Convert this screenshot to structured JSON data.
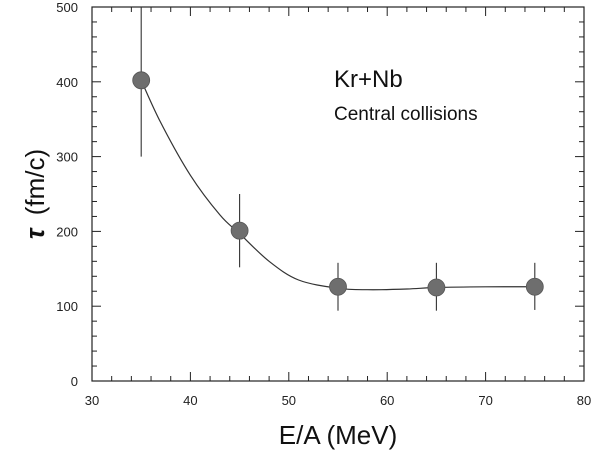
{
  "chart_data": {
    "type": "scatter",
    "title": "",
    "xlabel": "E/A (MeV)",
    "ylabel_symbol": "τ",
    "ylabel_unit": "(fm/c)",
    "xlim": [
      30,
      80
    ],
    "ylim": [
      0,
      500
    ],
    "xticks": [
      30,
      40,
      50,
      60,
      70,
      80
    ],
    "yticks": [
      0,
      100,
      200,
      300,
      400,
      500
    ],
    "grid": false,
    "annotation_title": "Kr+Nb",
    "annotation_subtitle": "Central collisions",
    "series": [
      {
        "x": [
          35,
          45,
          55,
          65,
          75
        ],
        "y": [
          402,
          201,
          126,
          125,
          126
        ],
        "yerr_low": [
          300,
          152,
          94,
          94,
          95
        ],
        "yerr_high": [
          500,
          250,
          158,
          158,
          158
        ],
        "marker_color": "#6e6e6e"
      }
    ],
    "fit_curve": {
      "x": [
        35,
        37,
        40,
        43,
        45,
        48,
        51,
        55,
        58,
        62,
        65,
        70,
        75
      ],
      "y": [
        402,
        345,
        275,
        222,
        197,
        160,
        135,
        124,
        122,
        123,
        125,
        126,
        126
      ]
    }
  }
}
